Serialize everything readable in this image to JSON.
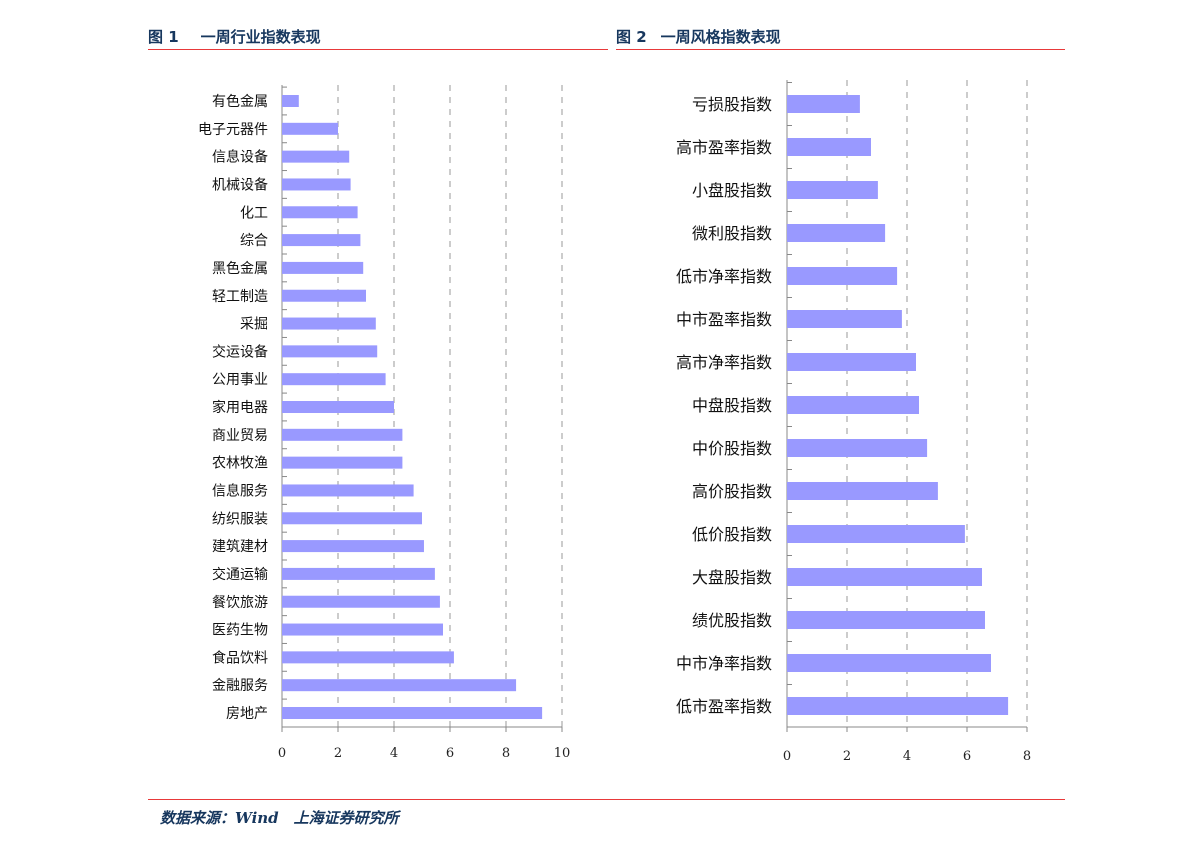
{
  "header": {
    "fig1_num": "图 1",
    "fig1_title": "一周行业指数表现",
    "fig2_num": "图 2",
    "fig2_title": "一周风格指数表现"
  },
  "footer": {
    "source": "数据来源：Wind　上海证券研究所"
  },
  "chart_data": [
    {
      "type": "bar",
      "orientation": "horizontal",
      "title": "一周行业指数表现",
      "xlim": [
        0,
        10
      ],
      "xticks": [
        0,
        2,
        4,
        6,
        8,
        10
      ],
      "grid": "vertical dashed",
      "bar_color": "#9999ff",
      "categories": [
        "有色金属",
        "电子元器件",
        "信息设备",
        "机械设备",
        "化工",
        "综合",
        "黑色金属",
        "轻工制造",
        "采掘",
        "交运设备",
        "公用事业",
        "家用电器",
        "商业贸易",
        "农林牧渔",
        "信息服务",
        "纺织服装",
        "建筑建材",
        "交通运输",
        "餐饮旅游",
        "医药生物",
        "食品饮料",
        "金融服务",
        "房地产"
      ],
      "values": [
        0.6,
        2.0,
        2.4,
        2.45,
        2.7,
        2.8,
        2.9,
        3.0,
        3.35,
        3.4,
        3.7,
        4.0,
        4.3,
        4.3,
        4.7,
        5.0,
        5.07,
        5.46,
        5.64,
        5.75,
        6.14,
        8.36,
        9.29
      ]
    },
    {
      "type": "bar",
      "orientation": "horizontal",
      "title": "一周风格指数表现",
      "xlim": [
        0,
        8
      ],
      "xticks": [
        0,
        2,
        4,
        6,
        8
      ],
      "grid": "vertical dashed",
      "bar_color": "#9999ff",
      "categories": [
        "亏损股指数",
        "高市盈率指数",
        "小盘股指数",
        "微利股指数",
        "低市净率指数",
        "中市盈率指数",
        "高市净率指数",
        "中盘股指数",
        "中价股指数",
        "高价股指数",
        "低价股指数",
        "大盘股指数",
        "绩优股指数",
        "中市净率指数",
        "低市盈率指数"
      ],
      "values": [
        2.43,
        2.8,
        3.03,
        3.27,
        3.67,
        3.83,
        4.3,
        4.4,
        4.67,
        5.03,
        5.93,
        6.5,
        6.6,
        6.8,
        7.37
      ]
    }
  ]
}
